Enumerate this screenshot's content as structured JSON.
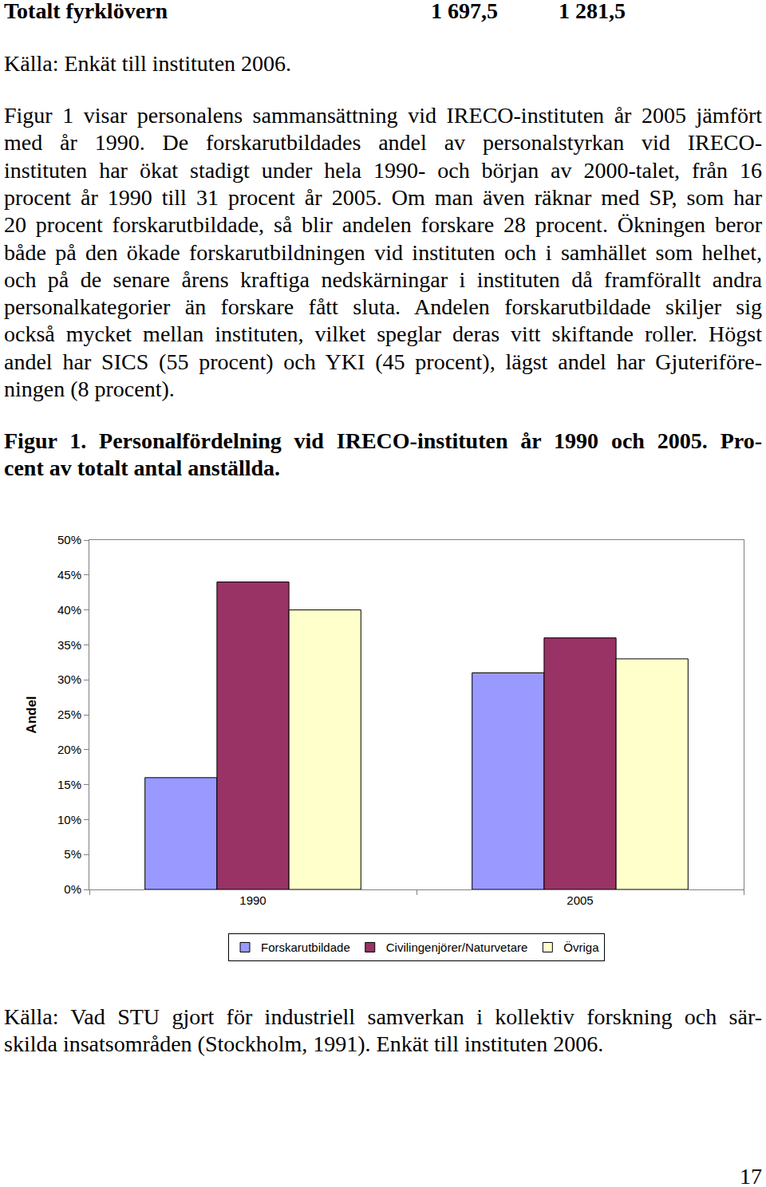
{
  "page": {
    "header_row": {
      "label": "Totalt fyrklövern",
      "values": [
        "1 697,5",
        "1 281,5"
      ]
    },
    "source_top": "Källa: Enkät till instituten 2006.",
    "paragraph": [
      "Figur 1 visar personalens sammansättning vid IRECO-instituten år 2005 jämfört",
      "med år 1990. De forskarutbildades andel av personalstyrkan vid IRECO-",
      "instituten har ökat stadigt under hela 1990- och början av 2000-talet, från 16",
      "procent år 1990 till 31 procent år 2005. Om man även räknar med SP, som har",
      "20 procent forskarutbildade, så blir andelen forskare 28 procent. Ökningen beror",
      "både på den ökade forskarutbildningen vid instituten och i samhället som helhet,",
      "och på de senare årens kraftiga nedskärningar i instituten då framförallt andra",
      "personalkategorier än forskare fått sluta. Andelen forskarutbildade skiljer sig",
      "också mycket mellan instituten, vilket speglar deras vitt skiftande roller. Högst",
      "andel har SICS (55 procent) och YKI (45 procent), lägst andel har Gjuteriföre-",
      "ningen (8 procent)."
    ],
    "figure_caption": [
      "Figur 1. Personalfördelning vid IRECO-instituten år 1990 och 2005. Pro-",
      "cent av totalt antal anställda."
    ],
    "source": [
      "Källa: Vad STU gjort för industriell samverkan i kollektiv forskning och sär-",
      "skilda insatsområden (Stockholm, 1991). Enkät till instituten 2006."
    ],
    "page_number": "17"
  },
  "chart_data": {
    "type": "bar",
    "categories": [
      "1990",
      "2005"
    ],
    "series": [
      {
        "name": "Forskarutbildade",
        "color": "#9999ff",
        "values": [
          16,
          31
        ]
      },
      {
        "name": "Civilingenjörer/Naturvetare",
        "color": "#993366",
        "values": [
          44,
          36
        ]
      },
      {
        "name": "Övriga",
        "color": "#ffffcc",
        "values": [
          40,
          33
        ]
      }
    ],
    "y_label": "Andel",
    "ylim": [
      0,
      50
    ],
    "yticks": [
      {
        "value": 0,
        "label": "0%"
      },
      {
        "value": 5,
        "label": "5%"
      },
      {
        "value": 10,
        "label": "10%"
      },
      {
        "value": 15,
        "label": "15%"
      },
      {
        "value": 20,
        "label": "20%"
      },
      {
        "value": 25,
        "label": "25%"
      },
      {
        "value": 30,
        "label": "30%"
      },
      {
        "value": 35,
        "label": "35%"
      },
      {
        "value": 40,
        "label": "40%"
      },
      {
        "value": 45,
        "label": "45%"
      },
      {
        "value": 50,
        "label": "50%"
      }
    ],
    "grid": false,
    "legend": "bottom"
  }
}
